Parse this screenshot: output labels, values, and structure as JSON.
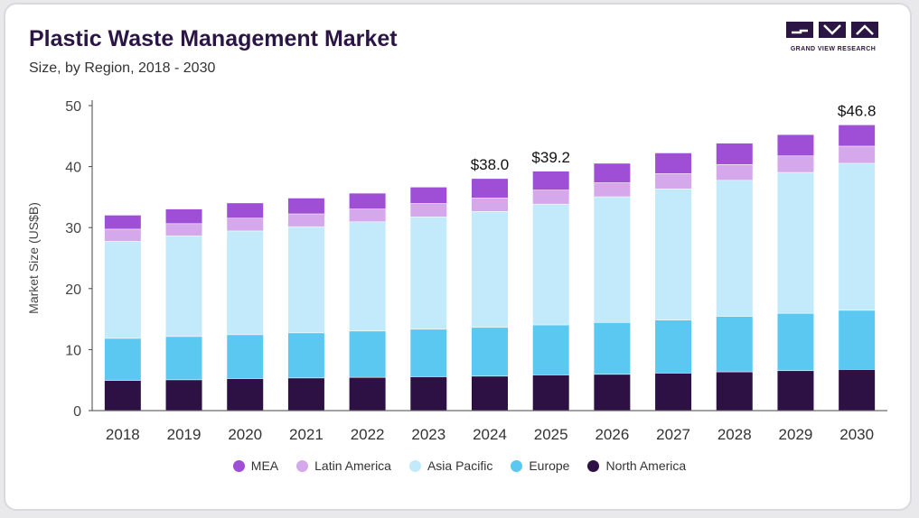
{
  "header": {
    "title": "Plastic Waste Management Market",
    "subtitle": "Size, by Region, 2018 - 2030"
  },
  "logo": {
    "text": "GRAND VIEW RESEARCH",
    "icon": "gvr-logo-icon"
  },
  "chart_data": {
    "type": "bar",
    "stacked": true,
    "title": "Plastic Waste Management Market",
    "subtitle": "Size, by Region, 2018 - 2030",
    "xlabel": "",
    "ylabel": "Market Size (US$B)",
    "ylim": [
      0,
      50
    ],
    "yticks": [
      0,
      10,
      20,
      30,
      40,
      50
    ],
    "grid": false,
    "legend_position": "bottom",
    "categories": [
      "2018",
      "2019",
      "2020",
      "2021",
      "2022",
      "2023",
      "2024",
      "2025",
      "2026",
      "2027",
      "2028",
      "2029",
      "2030"
    ],
    "series": [
      {
        "name": "North America",
        "color": "#2d1144",
        "values": [
          4.9,
          5.0,
          5.2,
          5.3,
          5.4,
          5.5,
          5.6,
          5.8,
          5.9,
          6.1,
          6.3,
          6.5,
          6.7
        ]
      },
      {
        "name": "Europe",
        "color": "#5bc8f2",
        "values": [
          6.9,
          7.1,
          7.2,
          7.4,
          7.6,
          7.8,
          8.0,
          8.2,
          8.5,
          8.7,
          9.1,
          9.4,
          9.7
        ]
      },
      {
        "name": "Asia Pacific",
        "color": "#c2eafa",
        "values": [
          15.9,
          16.5,
          17.0,
          17.4,
          17.9,
          18.4,
          19.0,
          19.8,
          20.6,
          21.5,
          22.3,
          23.1,
          24.1
        ]
      },
      {
        "name": "Latin America",
        "color": "#d4a8ea",
        "values": [
          2.0,
          2.0,
          2.1,
          2.1,
          2.1,
          2.2,
          2.2,
          2.3,
          2.3,
          2.5,
          2.6,
          2.7,
          2.8
        ]
      },
      {
        "name": "MEA",
        "color": "#9e4fd6",
        "values": [
          2.3,
          2.4,
          2.5,
          2.6,
          2.6,
          2.7,
          3.2,
          3.1,
          3.2,
          3.4,
          3.5,
          3.5,
          3.5
        ]
      }
    ],
    "legend_order": [
      "MEA",
      "Latin America",
      "Asia Pacific",
      "Europe",
      "North America"
    ],
    "annotations": [
      {
        "category": "2024",
        "label": "$38.0",
        "value": 38.0
      },
      {
        "category": "2025",
        "label": "$39.2",
        "value": 39.2
      },
      {
        "category": "2030",
        "label": "$46.8",
        "value": 46.8
      }
    ]
  }
}
